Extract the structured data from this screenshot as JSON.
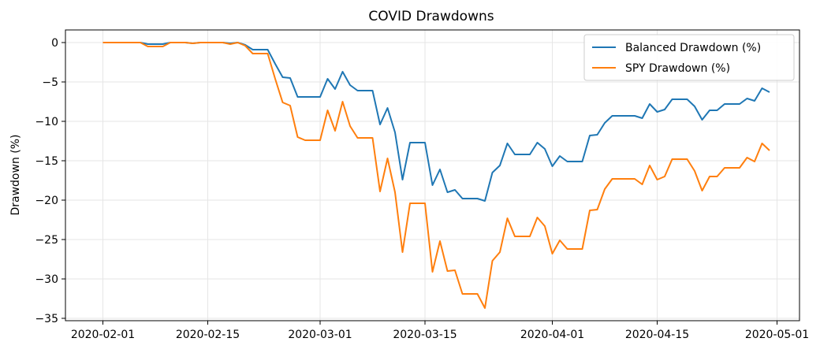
{
  "chart_data": {
    "type": "line",
    "title": "COVID Drawdowns",
    "xlabel": "",
    "ylabel": "Drawdown (%)",
    "x_axis": "date",
    "x_ticks": [
      "2020-02-01",
      "2020-02-15",
      "2020-03-01",
      "2020-03-15",
      "2020-04-01",
      "2020-04-15",
      "2020-05-01"
    ],
    "y_ticks": [
      0,
      -5,
      -10,
      -15,
      -20,
      -25,
      -30,
      -35
    ],
    "xlim": [
      "2020-01-27",
      "2020-05-04"
    ],
    "ylim": [
      -35.3,
      1.6
    ],
    "grid": true,
    "legend_position": "top-right",
    "x": [
      "2020-02-01",
      "2020-02-02",
      "2020-02-03",
      "2020-02-04",
      "2020-02-05",
      "2020-02-06",
      "2020-02-07",
      "2020-02-08",
      "2020-02-09",
      "2020-02-10",
      "2020-02-11",
      "2020-02-12",
      "2020-02-13",
      "2020-02-14",
      "2020-02-15",
      "2020-02-16",
      "2020-02-17",
      "2020-02-18",
      "2020-02-19",
      "2020-02-20",
      "2020-02-21",
      "2020-02-22",
      "2020-02-23",
      "2020-02-24",
      "2020-02-25",
      "2020-02-26",
      "2020-02-27",
      "2020-02-28",
      "2020-02-29",
      "2020-03-01",
      "2020-03-02",
      "2020-03-03",
      "2020-03-04",
      "2020-03-05",
      "2020-03-06",
      "2020-03-07",
      "2020-03-08",
      "2020-03-09",
      "2020-03-10",
      "2020-03-11",
      "2020-03-12",
      "2020-03-13",
      "2020-03-14",
      "2020-03-15",
      "2020-03-16",
      "2020-03-17",
      "2020-03-18",
      "2020-03-19",
      "2020-03-20",
      "2020-03-21",
      "2020-03-22",
      "2020-03-23",
      "2020-03-24",
      "2020-03-25",
      "2020-03-26",
      "2020-03-27",
      "2020-03-28",
      "2020-03-29",
      "2020-03-30",
      "2020-03-31",
      "2020-04-01",
      "2020-04-02",
      "2020-04-03",
      "2020-04-04",
      "2020-04-05",
      "2020-04-06",
      "2020-04-07",
      "2020-04-08",
      "2020-04-09",
      "2020-04-10",
      "2020-04-11",
      "2020-04-12",
      "2020-04-13",
      "2020-04-14",
      "2020-04-15",
      "2020-04-16",
      "2020-04-17",
      "2020-04-18",
      "2020-04-19",
      "2020-04-20",
      "2020-04-21",
      "2020-04-22",
      "2020-04-23",
      "2020-04-24",
      "2020-04-25",
      "2020-04-26",
      "2020-04-27",
      "2020-04-28",
      "2020-04-29",
      "2020-04-30"
    ],
    "series": [
      {
        "name": "Balanced Drawdown (%)",
        "color": "#1f77b4",
        "values": [
          0,
          0,
          0,
          0,
          0,
          0,
          -0.2,
          -0.2,
          -0.2,
          0,
          0,
          0,
          -0.1,
          0,
          0,
          0,
          0,
          -0.1,
          0,
          -0.3,
          -0.9,
          -0.9,
          -0.9,
          -2.7,
          -4.4,
          -4.5,
          -6.9,
          -6.9,
          -6.9,
          -6.9,
          -4.6,
          -5.9,
          -3.7,
          -5.4,
          -6.1,
          -6.1,
          -6.1,
          -10.4,
          -8.3,
          -11.4,
          -17.4,
          -12.7,
          -12.7,
          -12.7,
          -18.1,
          -16.1,
          -19.0,
          -18.7,
          -19.8,
          -19.8,
          -19.8,
          -20.1,
          -16.5,
          -15.6,
          -12.8,
          -14.2,
          -14.2,
          -14.2,
          -12.7,
          -13.5,
          -15.7,
          -14.4,
          -15.1,
          -15.1,
          -15.1,
          -11.8,
          -11.7,
          -10.2,
          -9.3,
          -9.3,
          -9.3,
          -9.3,
          -9.6,
          -7.8,
          -8.8,
          -8.5,
          -7.2,
          -7.2,
          -7.2,
          -8.1,
          -9.8,
          -8.6,
          -8.6,
          -7.8,
          -7.8,
          -7.8,
          -7.1,
          -7.4,
          -5.8,
          -6.3
        ]
      },
      {
        "name": "SPY Drawdown (%)",
        "color": "#ff7f0e",
        "values": [
          0,
          0,
          0,
          0,
          0,
          0,
          -0.5,
          -0.5,
          -0.5,
          0,
          0,
          0,
          -0.1,
          0,
          0,
          0,
          0,
          -0.2,
          0,
          -0.4,
          -1.4,
          -1.4,
          -1.4,
          -4.6,
          -7.6,
          -8.0,
          -12.0,
          -12.4,
          -12.4,
          -12.4,
          -8.6,
          -11.2,
          -7.5,
          -10.6,
          -12.1,
          -12.1,
          -12.1,
          -18.9,
          -14.7,
          -19.0,
          -26.6,
          -20.4,
          -20.4,
          -20.4,
          -29.1,
          -25.2,
          -29.0,
          -28.9,
          -31.9,
          -31.9,
          -31.9,
          -33.7,
          -27.7,
          -26.6,
          -22.3,
          -24.6,
          -24.6,
          -24.6,
          -22.2,
          -23.3,
          -26.8,
          -25.1,
          -26.2,
          -26.2,
          -26.2,
          -21.3,
          -21.2,
          -18.6,
          -17.3,
          -17.3,
          -17.3,
          -17.3,
          -18.0,
          -15.6,
          -17.4,
          -17.0,
          -14.8,
          -14.8,
          -14.8,
          -16.3,
          -18.8,
          -17.0,
          -17.0,
          -15.9,
          -15.9,
          -15.9,
          -14.6,
          -15.1,
          -12.8,
          -13.7
        ]
      }
    ]
  }
}
